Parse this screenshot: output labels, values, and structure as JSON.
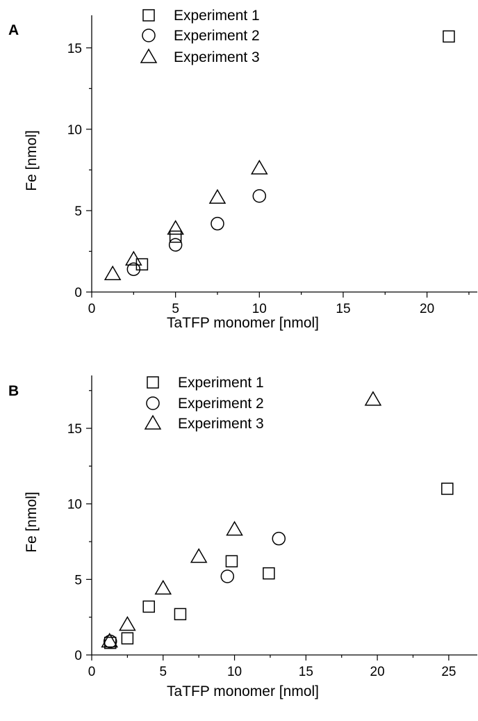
{
  "chart_data": [
    {
      "type": "scatter",
      "panel_label": "A",
      "xlabel": "TaTFP monomer [nmol]",
      "ylabel": "Fe [nmol]",
      "xlim": [
        0,
        23
      ],
      "ylim": [
        0,
        17
      ],
      "xticks": [
        0,
        5,
        10,
        15,
        20
      ],
      "yticks": [
        0,
        5,
        10,
        15
      ],
      "legend_position": "top-center",
      "series": [
        {
          "name": "Experiment 1",
          "marker": "square",
          "points": [
            [
              3.0,
              1.7
            ],
            [
              5.0,
              3.4
            ],
            [
              21.3,
              15.7
            ]
          ]
        },
        {
          "name": "Experiment 2",
          "marker": "circle",
          "points": [
            [
              2.5,
              1.4
            ],
            [
              5.0,
              2.9
            ],
            [
              7.5,
              4.2
            ],
            [
              10.0,
              5.9
            ]
          ]
        },
        {
          "name": "Experiment 3",
          "marker": "triangle",
          "points": [
            [
              1.25,
              1.1
            ],
            [
              2.5,
              2.0
            ],
            [
              5.0,
              3.9
            ],
            [
              7.5,
              5.8
            ],
            [
              10.0,
              7.6
            ]
          ]
        }
      ]
    },
    {
      "type": "scatter",
      "panel_label": "B",
      "xlabel": "TaTFP monomer [nmol]",
      "ylabel": "Fe [nmol]",
      "xlim": [
        0,
        27
      ],
      "ylim": [
        0,
        18.5
      ],
      "xticks": [
        0,
        5,
        10,
        15,
        20,
        25
      ],
      "yticks": [
        0,
        5,
        10,
        15
      ],
      "legend_position": "top-center",
      "series": [
        {
          "name": "Experiment 1",
          "marker": "square",
          "points": [
            [
              1.3,
              0.8
            ],
            [
              2.5,
              1.1
            ],
            [
              4.0,
              3.2
            ],
            [
              6.2,
              2.7
            ],
            [
              9.8,
              6.2
            ],
            [
              12.4,
              5.4
            ],
            [
              24.9,
              11.0
            ]
          ]
        },
        {
          "name": "Experiment 2",
          "marker": "circle",
          "points": [
            [
              1.3,
              0.9
            ],
            [
              9.5,
              5.2
            ],
            [
              13.1,
              7.7
            ]
          ]
        },
        {
          "name": "Experiment 3",
          "marker": "triangle",
          "points": [
            [
              1.25,
              0.9
            ],
            [
              2.5,
              2.0
            ],
            [
              5.0,
              4.4
            ],
            [
              7.5,
              6.5
            ],
            [
              10.0,
              8.3
            ],
            [
              19.7,
              16.9
            ]
          ]
        }
      ]
    }
  ]
}
